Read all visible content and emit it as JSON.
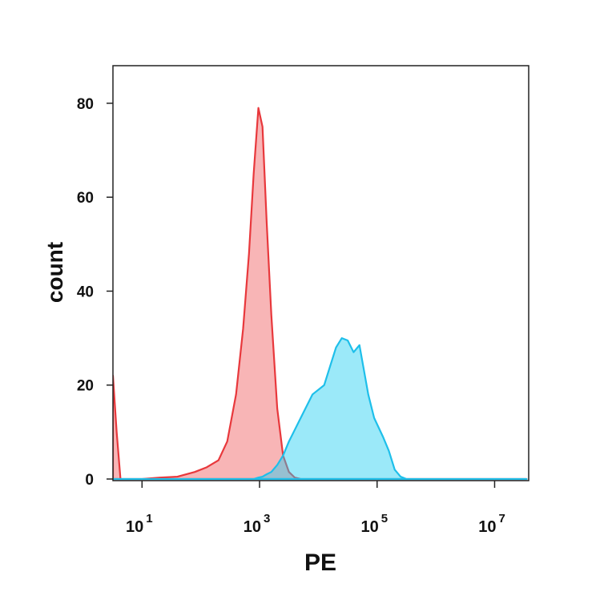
{
  "chart_data": {
    "type": "area",
    "x_label": "PE",
    "y_label": "count",
    "x": [
      3.2,
      3.7,
      4.3,
      10,
      20,
      40,
      79,
      126,
      200,
      282,
      398,
      525,
      661,
      794,
      955,
      1122,
      1318,
      1585,
      2000,
      2512,
      3162,
      3981,
      5012,
      7943,
      12589,
      15849,
      20000,
      25119,
      31623,
      39811,
      50119,
      56234,
      70795,
      89125,
      125893,
      158489,
      199526,
      251189,
      316228,
      10000000,
      35000000
    ],
    "series": [
      {
        "color": "#e8383c",
        "fill": "#f05a5e",
        "values": [
          22,
          10,
          0,
          0,
          0.3,
          0.5,
          1.5,
          2.5,
          4,
          8,
          18,
          32,
          48,
          65,
          79,
          75,
          55,
          35,
          15,
          5,
          1.5,
          0.3,
          0,
          0,
          0,
          0,
          0,
          0,
          0,
          0,
          0,
          0,
          0,
          0,
          0,
          0,
          0,
          0,
          0,
          0,
          0
        ]
      },
      {
        "color": "#1ebfea",
        "fill": "#22cef2",
        "values": [
          0,
          0,
          0,
          0,
          0,
          0,
          0,
          0,
          0,
          0,
          0,
          0,
          0,
          0,
          0.3,
          0.5,
          1,
          1.5,
          3,
          5,
          8,
          10.5,
          13,
          18,
          20,
          24,
          28,
          30,
          29.5,
          27,
          28.5,
          25,
          18,
          13,
          9,
          6,
          2,
          0.5,
          0,
          0,
          0
        ]
      }
    ],
    "xlog": true,
    "xlim": [
      3.2,
      38000000
    ],
    "xticks": [
      {
        "value": 10,
        "label": "10",
        "exponent": "1"
      },
      {
        "value": 1000,
        "label": "10",
        "exponent": "3"
      },
      {
        "value": 100000,
        "label": "10",
        "exponent": "5"
      },
      {
        "value": 10000000,
        "label": "10",
        "exponent": "7"
      }
    ],
    "ylim": [
      0,
      88
    ],
    "yticks": [
      0,
      20,
      40,
      60,
      80
    ]
  }
}
